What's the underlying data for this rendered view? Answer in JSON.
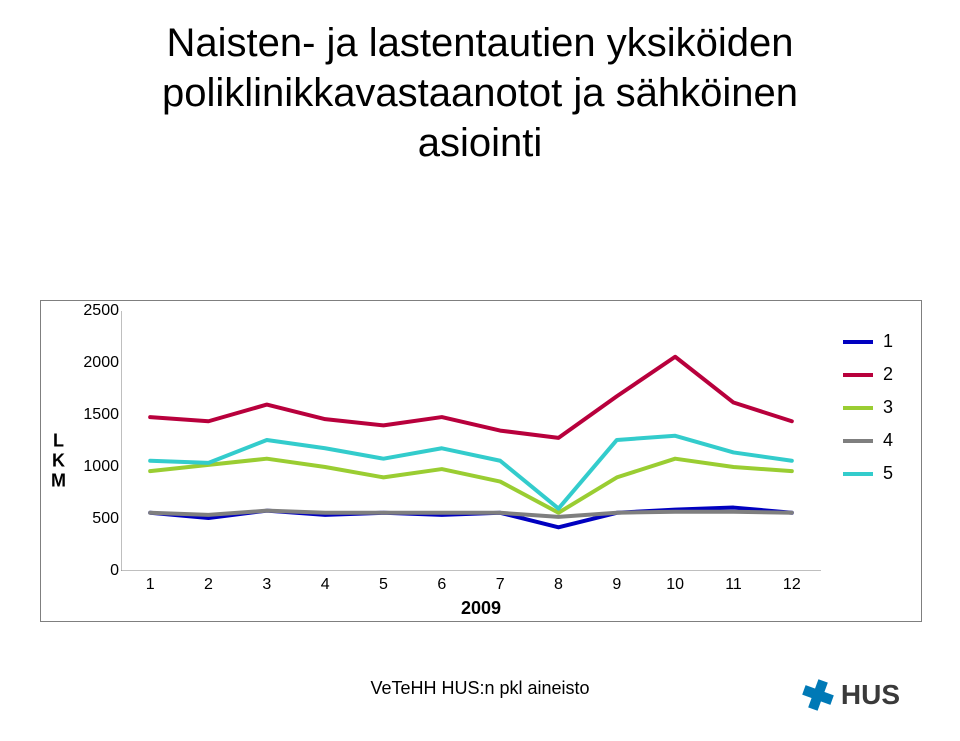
{
  "title_line1": "Naisten- ja lastentautien yksiköiden",
  "title_line2": "poliklinikkavastaanotot ja sähköinen",
  "title_line3": "asiointi",
  "title_fontsize": 40,
  "title_color": "#000000",
  "footer_text": "VeTeHH HUS:n pkl aineisto",
  "footer_fontsize": 18,
  "logo_text": "HUS",
  "logo_color": "#0079b6",
  "chart": {
    "type": "line",
    "background_color": "#ffffff",
    "border_color": "#7f7f7f",
    "grid": false,
    "ylabel": "L\nK\nM",
    "xlabel": "2009",
    "label_fontsize": 18,
    "tick_fontsize": 16,
    "line_width": 4,
    "x_categories": [
      "1",
      "2",
      "3",
      "4",
      "5",
      "6",
      "7",
      "8",
      "9",
      "10",
      "11",
      "12"
    ],
    "ylim": [
      0,
      2500
    ],
    "ytick_step": 500,
    "yticks": [
      0,
      500,
      1000,
      1500,
      2000,
      2500
    ],
    "series": [
      {
        "name": "1",
        "color": "#0000c0",
        "values": [
          560,
          510,
          580,
          540,
          560,
          540,
          560,
          420,
          560,
          590,
          610,
          560
        ]
      },
      {
        "name": "2",
        "color": "#b8003c",
        "values": [
          1480,
          1440,
          1600,
          1460,
          1400,
          1480,
          1350,
          1280,
          1680,
          2060,
          1620,
          1440
        ]
      },
      {
        "name": "3",
        "color": "#9acd32",
        "values": [
          960,
          1020,
          1080,
          1000,
          900,
          980,
          860,
          560,
          900,
          1080,
          1000,
          960
        ]
      },
      {
        "name": "4",
        "color": "#7f7f7f",
        "values": [
          560,
          540,
          580,
          560,
          560,
          560,
          560,
          520,
          560,
          570,
          570,
          560
        ]
      },
      {
        "name": "5",
        "color": "#33cccc",
        "values": [
          1060,
          1040,
          1260,
          1180,
          1080,
          1180,
          1060,
          600,
          1260,
          1300,
          1140,
          1060
        ]
      }
    ],
    "legend_position": "right"
  }
}
